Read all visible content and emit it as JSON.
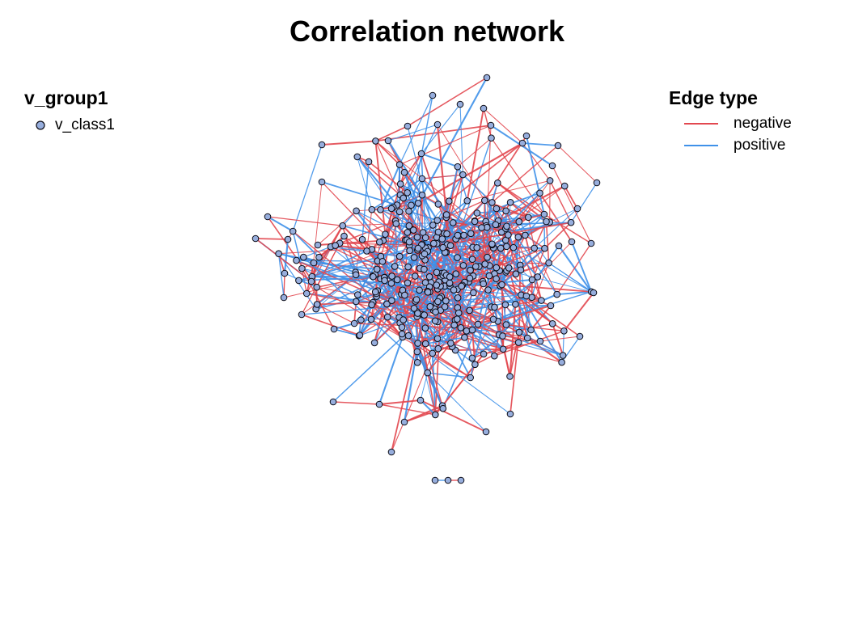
{
  "title": "Correlation network",
  "node_legend": {
    "title": "v_group1",
    "items": [
      {
        "label": "v_class1",
        "color": "#97aedd"
      }
    ]
  },
  "edge_legend": {
    "title": "Edge type",
    "items": [
      {
        "label": "negative",
        "color": "#e2474f"
      },
      {
        "label": "positive",
        "color": "#3f91e9"
      }
    ]
  },
  "colors": {
    "node_fill": "#97aedd",
    "node_stroke": "#0a0a14",
    "negative": "#e2474f",
    "positive": "#3f91e9"
  }
}
